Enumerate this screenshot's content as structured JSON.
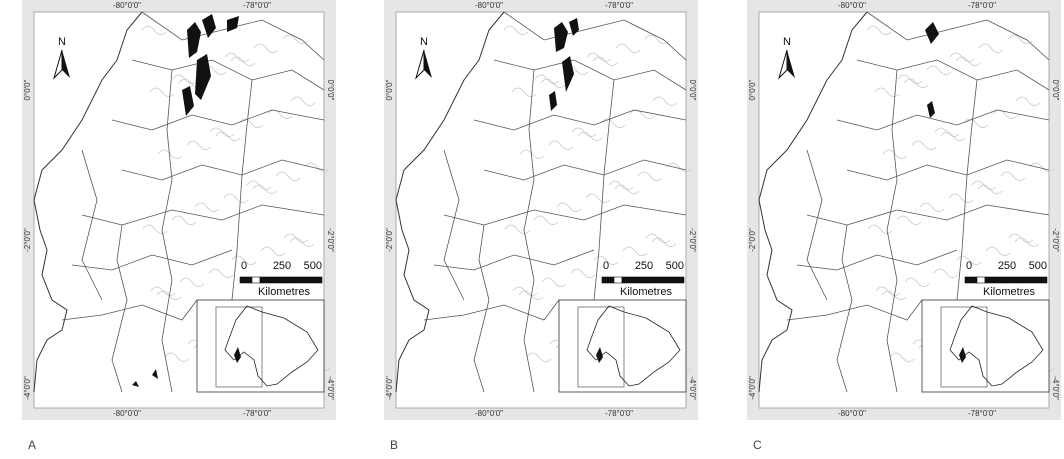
{
  "panels": [
    {
      "label": "A",
      "north": "N",
      "top_labels": [
        "-80°0'0\"",
        "-78°0'0\""
      ],
      "bottom_labels": [
        "-80°0'0\"",
        "-78°0'0\""
      ],
      "left_labels": [
        "0°0'0\"",
        "-2°0'0\"",
        "-4°0'0\""
      ],
      "right_labels": [
        "0°0'0\"",
        "-2°0'0\"",
        "-4°0'0\""
      ],
      "scale_labels": [
        "0",
        "250",
        "500"
      ],
      "scale_unit": "Kilometres"
    },
    {
      "label": "B",
      "north": "N",
      "top_labels": [
        "-80°0'0\"",
        "-78°0'0\""
      ],
      "bottom_labels": [
        "-80°0'0\"",
        "-78°0'0\""
      ],
      "left_labels": [
        "0°0'0\"",
        "-2°0'0\"",
        "-4°0'0\""
      ],
      "right_labels": [
        "0°0'0\"",
        "-2°0'0\"",
        "-4°0'0\""
      ],
      "scale_labels": [
        "0",
        "250",
        "500"
      ],
      "scale_unit": "Kilometres"
    },
    {
      "label": "C",
      "north": "N",
      "top_labels": [
        "-80°0'0\"",
        "-78°0'0\""
      ],
      "bottom_labels": [
        "-80°0'0\"",
        "-78°0'0\""
      ],
      "left_labels": [
        "0°0'0\"",
        "-2°0'0\"",
        "-4°0'0\""
      ],
      "right_labels": [
        "0°0'0\"",
        "-2°0'0\"",
        "-4°0'0\""
      ],
      "scale_labels": [
        "0",
        "250",
        "500"
      ],
      "scale_unit": "Kilometres"
    }
  ]
}
